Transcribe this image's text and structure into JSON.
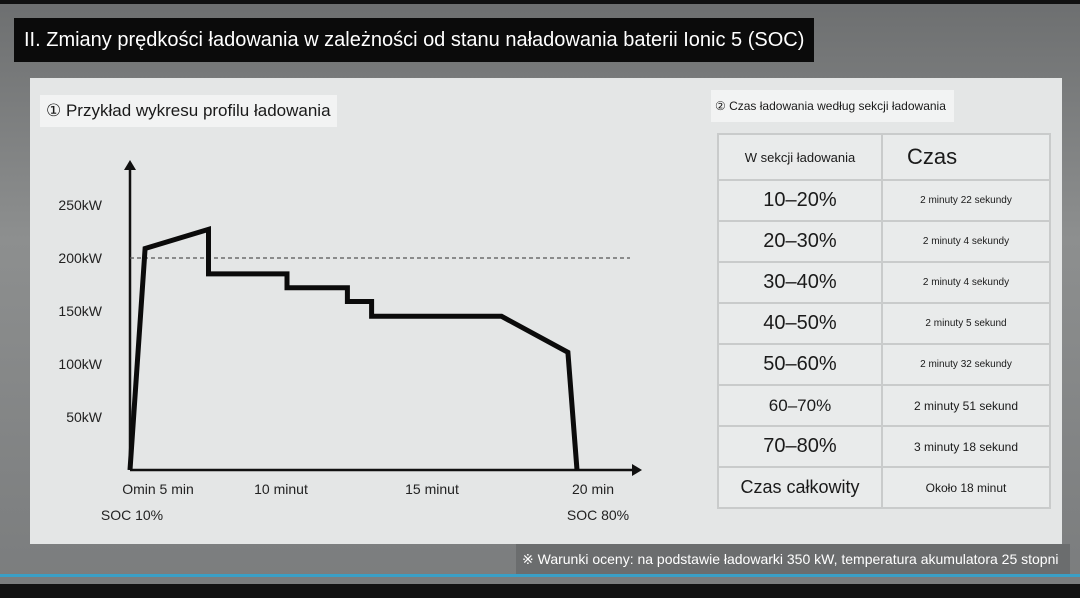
{
  "title": "II. Zmiany prędkości ładowania w zależności od stanu naładowania baterii Ionic 5 (SOC)",
  "left_label": "① Przykład wykresu profilu ładowania",
  "right_label": "② Czas ładowania według sekcji ładowania",
  "footnote": "※ Warunki oceny: na podstawie ładowarki 350 kW, temperatura akumulatora 25 stopni",
  "chart_data": {
    "type": "line",
    "title": "① Przykład wykresu profilu ładowania",
    "y_tick_labels": [
      "250kW",
      "200kW",
      "150kW",
      "100kW",
      "50kW"
    ],
    "y_ticks": [
      250,
      200,
      150,
      100,
      50
    ],
    "x_tick_labels": [
      "Omin 5 min",
      "10 minut",
      "15 minut",
      "20 min"
    ],
    "x_ticks": [
      5,
      10,
      15,
      20
    ],
    "x_sublabels": [
      {
        "x": 5,
        "text": "SOC 10%"
      },
      {
        "x": 20,
        "text": "SOC 80%"
      }
    ],
    "reference_line": {
      "y": 200,
      "style": "dashed"
    },
    "xlim": [
      4.9,
      21
    ],
    "ylim": [
      0,
      270
    ],
    "series": [
      {
        "x": [
          5.0,
          5.5,
          7.6,
          7.6,
          10.2,
          10.2,
          12.2,
          12.2,
          13.0,
          13.0,
          14.8,
          14.8,
          17.3,
          19.5,
          19.8
        ],
        "y": [
          0,
          209,
          227,
          185,
          185,
          172,
          172,
          159,
          159,
          145,
          145,
          145,
          145,
          111,
          0
        ]
      }
    ]
  },
  "table": {
    "headers": [
      "W sekcji ładowania",
      "Czas"
    ],
    "rows": [
      [
        "10–20%",
        "2 minuty 22 sekundy"
      ],
      [
        "20–30%",
        "2 minuty 4 sekundy"
      ],
      [
        "30–40%",
        "2 minuty 4 sekundy"
      ],
      [
        "40–50%",
        "2 minuty 5 sekund"
      ],
      [
        "50–60%",
        "2 minuty 32 sekundy"
      ],
      [
        "60–70%",
        "2 minuty 51 sekund"
      ],
      [
        "70–80%",
        "3 minuty 18 sekund"
      ],
      [
        "Czas całkowity",
        "Około 18 minut"
      ]
    ]
  }
}
